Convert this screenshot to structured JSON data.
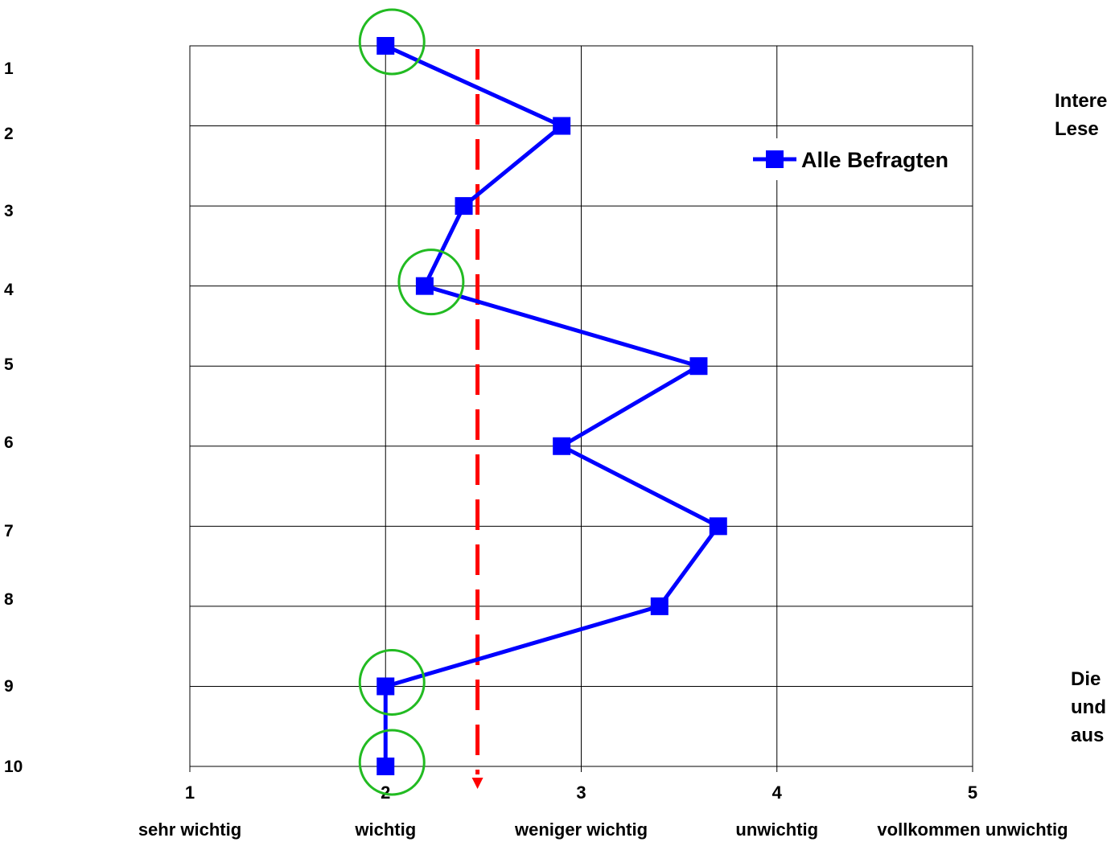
{
  "chart_data": {
    "type": "line",
    "orientation": "horizontal-values",
    "categories": [
      "1",
      "2",
      "3",
      "4",
      "5",
      "6",
      "7",
      "8",
      "9",
      "10"
    ],
    "xlim": [
      1,
      5
    ],
    "xticks": [
      {
        "value": 1,
        "num": "1",
        "word": "sehr wichtig"
      },
      {
        "value": 2,
        "num": "2",
        "word": "wichtig"
      },
      {
        "value": 3,
        "num": "3",
        "word": "weniger wichtig"
      },
      {
        "value": 4,
        "num": "4",
        "word": "unwichtig"
      },
      {
        "value": 5,
        "num": "5",
        "word": "vollkommen unwichtig"
      }
    ],
    "series": [
      {
        "name": "Alle Befragten",
        "color": "#0000ff",
        "values": [
          2.0,
          2.9,
          2.4,
          2.2,
          3.6,
          2.9,
          3.7,
          3.4,
          2.0,
          2.0
        ]
      }
    ],
    "highlighted_categories": [
      "1",
      "4",
      "9",
      "10"
    ],
    "highlight_color": "#22bb22",
    "reference_line": {
      "value": 2.47,
      "color": "#ff0000",
      "style": "dashed"
    },
    "legend_position": "upper-right",
    "grid": true
  },
  "side_text": {
    "top": [
      "Intere",
      "Lese"
    ],
    "bottom": [
      "Die",
      "und",
      "aus"
    ]
  }
}
